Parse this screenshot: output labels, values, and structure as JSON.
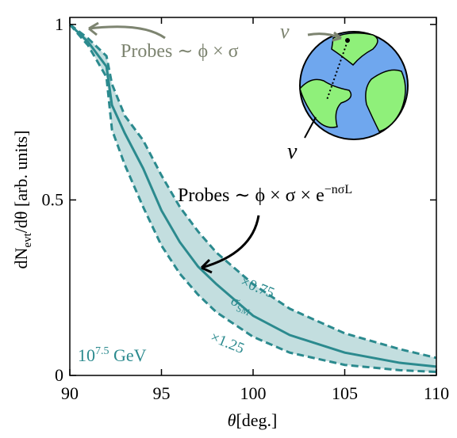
{
  "chart_data": {
    "type": "line",
    "x": [
      90,
      91,
      92,
      92.3,
      93,
      94,
      95,
      96,
      97,
      98,
      100,
      102,
      105,
      108,
      110
    ],
    "series": [
      {
        "color": "#2b8a8e",
        "dashed": true,
        "values": [
          1,
          0.96,
          0.91,
          0.83,
          0.74,
          0.67,
          0.57,
          0.48,
          0.41,
          0.35,
          0.26,
          0.19,
          0.12,
          0.075,
          0.05
        ]
      },
      {
        "color": "#2b8a8e",
        "dashed": false,
        "values": [
          1,
          0.95,
          0.88,
          0.77,
          0.69,
          0.59,
          0.47,
          0.38,
          0.31,
          0.26,
          0.17,
          0.115,
          0.065,
          0.036,
          0.025
        ]
      },
      {
        "color": "#2b8a8e",
        "dashed": true,
        "values": [
          1,
          0.94,
          0.85,
          0.7,
          0.6,
          0.48,
          0.37,
          0.29,
          0.23,
          0.18,
          0.11,
          0.065,
          0.03,
          0.015,
          0.01
        ]
      }
    ],
    "band_color": "#b9d8d9",
    "xlim": [
      90,
      110
    ],
    "xticks": [
      90,
      95,
      100,
      105,
      110
    ],
    "ylim": [
      0,
      1.02
    ],
    "yticks": [
      0,
      0.5,
      1
    ],
    "xlabel": {
      "main": "θ",
      "unit": "[deg.]"
    },
    "ylabel": {
      "d": "dN",
      "sub": "evt",
      "rest": "/dθ [arb. units]"
    },
    "annotations": {
      "probes_flux": "Probes ∼ ϕ × σ",
      "probes_atm": "Probes ∼ ϕ × σ × e",
      "probes_atm_exp": "−nσL",
      "upper": "×0.75",
      "central": "σ",
      "central_sub": "SM",
      "lower": "×1.25",
      "energy_base": "10",
      "energy_exp": "7.5",
      "energy_unit": " GeV",
      "nu_top": "ν",
      "nu_bottom": "ν"
    }
  }
}
